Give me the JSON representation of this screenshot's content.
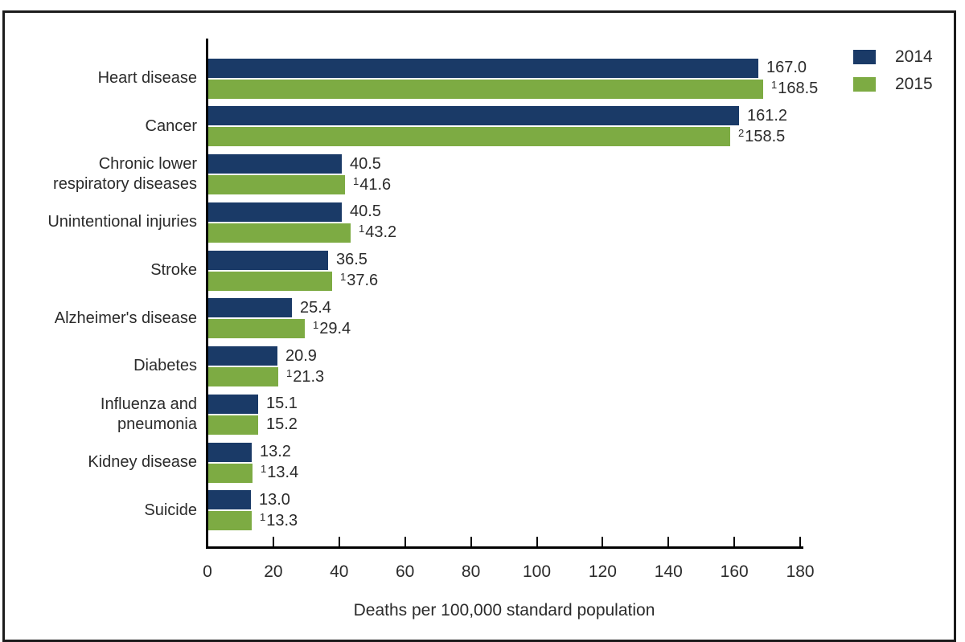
{
  "chart_data": {
    "type": "bar",
    "orientation": "horizontal",
    "title": "",
    "xlabel": "Deaths per 100,000 standard population",
    "ylabel": "",
    "xlim": [
      0,
      180
    ],
    "xticks": [
      0,
      20,
      40,
      60,
      80,
      100,
      120,
      140,
      160,
      180
    ],
    "grid": false,
    "legend_position": "top-right",
    "series": [
      {
        "name": "2014",
        "color": "#1a3a67"
      },
      {
        "name": "2015",
        "color": "#7dab43"
      }
    ],
    "categories": [
      "Heart disease",
      "Cancer",
      "Chronic lower respiratory diseases",
      "Unintentional injuries",
      "Stroke",
      "Alzheimer's disease",
      "Diabetes",
      "Influenza and pneumonia",
      "Kidney disease",
      "Suicide"
    ],
    "rows": [
      {
        "label_lines": [
          "Heart disease"
        ],
        "values": [
          167.0,
          168.5
        ],
        "value_labels": [
          "167.0",
          "168.5"
        ],
        "sups": [
          "",
          "1"
        ]
      },
      {
        "label_lines": [
          "Cancer"
        ],
        "values": [
          161.2,
          158.5
        ],
        "value_labels": [
          "161.2",
          "158.5"
        ],
        "sups": [
          "",
          "2"
        ]
      },
      {
        "label_lines": [
          "Chronic lower",
          "respiratory diseases"
        ],
        "values": [
          40.5,
          41.6
        ],
        "value_labels": [
          "40.5",
          "41.6"
        ],
        "sups": [
          "",
          "1"
        ]
      },
      {
        "label_lines": [
          "Unintentional injuries"
        ],
        "values": [
          40.5,
          43.2
        ],
        "value_labels": [
          "40.5",
          "43.2"
        ],
        "sups": [
          "",
          "1"
        ]
      },
      {
        "label_lines": [
          "Stroke"
        ],
        "values": [
          36.5,
          37.6
        ],
        "value_labels": [
          "36.5",
          "37.6"
        ],
        "sups": [
          "",
          "1"
        ]
      },
      {
        "label_lines": [
          "Alzheimer's disease"
        ],
        "values": [
          25.4,
          29.4
        ],
        "value_labels": [
          "25.4",
          "29.4"
        ],
        "sups": [
          "",
          "1"
        ]
      },
      {
        "label_lines": [
          "Diabetes"
        ],
        "values": [
          20.9,
          21.3
        ],
        "value_labels": [
          "20.9",
          "21.3"
        ],
        "sups": [
          "",
          "1"
        ]
      },
      {
        "label_lines": [
          "Influenza and",
          "pneumonia"
        ],
        "values": [
          15.1,
          15.2
        ],
        "value_labels": [
          "15.1",
          "15.2"
        ],
        "sups": [
          "",
          ""
        ]
      },
      {
        "label_lines": [
          "Kidney disease"
        ],
        "values": [
          13.2,
          13.4
        ],
        "value_labels": [
          "13.2",
          "13.4"
        ],
        "sups": [
          "",
          "1"
        ]
      },
      {
        "label_lines": [
          "Suicide"
        ],
        "values": [
          13.0,
          13.3
        ],
        "value_labels": [
          "13.0",
          "13.3"
        ],
        "sups": [
          "",
          "1"
        ]
      }
    ]
  },
  "colors": {
    "bar_2014": "#1a3a67",
    "bar_2015": "#7dab43",
    "axis": "#000000",
    "text": "#2b2b2b",
    "frame_border": "#1c1c1c",
    "background": "#ffffff"
  }
}
